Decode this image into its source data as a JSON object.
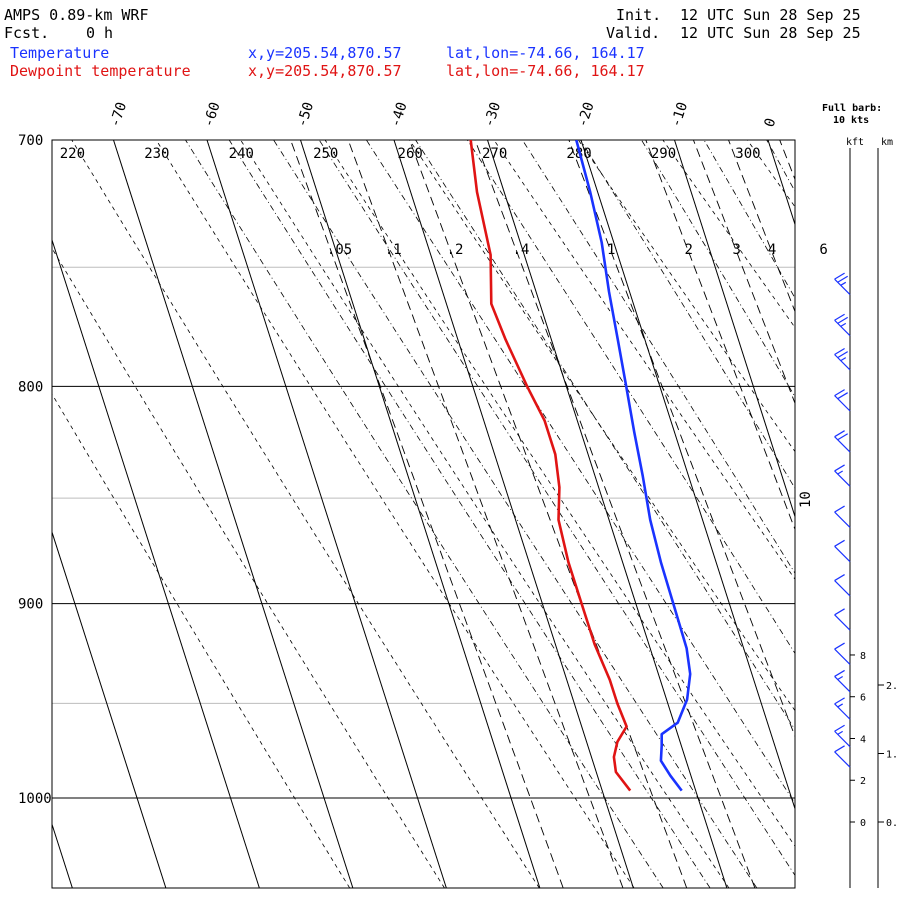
{
  "header": {
    "model": "AMPS 0.89-km WRF",
    "fcst_label": "Fcst.",
    "fcst_value": "0 h",
    "init_label": "Init.",
    "init_value": "12 UTC Sun 28 Sep 25",
    "valid_label": "Valid.",
    "valid_value": "12 UTC Sun 28 Sep 25"
  },
  "legend": [
    {
      "name": "Temperature",
      "xy": "x,y=205.54,870.57",
      "latlon": "lat,lon=-74.66, 164.17",
      "color": "#1a33ff"
    },
    {
      "name": "Dewpoint temperature",
      "xy": "x,y=205.54,870.57",
      "latlon": "lat,lon=-74.66, 164.17",
      "color": "#e01414"
    }
  ],
  "wind_legend": {
    "line1": "Full barb:",
    "line2": "10 kts"
  },
  "height_axis": {
    "kft_label": "kft",
    "km_label": "km"
  },
  "chart_data": {
    "type": "line",
    "diagram": "skew-T log-P",
    "y_axis": {
      "name": "pressure",
      "units": "hPa",
      "scale": "log",
      "range": [
        1045,
        700
      ],
      "ticks": [
        "700",
        "800",
        "900",
        "1000"
      ]
    },
    "x_axis": {
      "units": "degC",
      "skewed": true,
      "ticks": [
        "-70",
        "-60",
        "-50",
        "-40",
        "-30",
        "-20",
        "-10",
        "0",
        "10"
      ]
    },
    "dry_adiabats_K": [
      "220",
      "230",
      "240",
      "250",
      "260",
      "270",
      "280",
      "290",
      "300"
    ],
    "mixing_ratio_labels": [
      ".05",
      ".1",
      ".2",
      ".4",
      "1",
      "2",
      "3",
      "4",
      "6"
    ],
    "series": [
      {
        "name": "Temperature",
        "color": "#1a33ff",
        "points": [
          [
            996,
            -31.5
          ],
          [
            988,
            -32.2
          ],
          [
            980,
            -32.7
          ],
          [
            972,
            -32.1
          ],
          [
            966,
            -31.7
          ],
          [
            960,
            -29.6
          ],
          [
            948,
            -27.8
          ],
          [
            935,
            -26.6
          ],
          [
            922,
            -26.1
          ],
          [
            900,
            -26.0
          ],
          [
            880,
            -25.9
          ],
          [
            860,
            -25.6
          ],
          [
            840,
            -24.9
          ],
          [
            820,
            -24.3
          ],
          [
            800,
            -23.6
          ],
          [
            780,
            -22.9
          ],
          [
            760,
            -22.2
          ],
          [
            740,
            -21.3
          ],
          [
            720,
            -20.8
          ],
          [
            700,
            -20.5
          ]
        ]
      },
      {
        "name": "Dewpoint temperature",
        "color": "#e01414",
        "points": [
          [
            996,
            -37.0
          ],
          [
            986,
            -37.9
          ],
          [
            978,
            -37.6
          ],
          [
            970,
            -36.7
          ],
          [
            962,
            -35.2
          ],
          [
            950,
            -35.4
          ],
          [
            938,
            -35.4
          ],
          [
            920,
            -35.8
          ],
          [
            900,
            -35.8
          ],
          [
            880,
            -35.8
          ],
          [
            860,
            -35.4
          ],
          [
            845,
            -34.2
          ],
          [
            830,
            -33.5
          ],
          [
            815,
            -33.5
          ],
          [
            800,
            -34.2
          ],
          [
            780,
            -34.9
          ],
          [
            765,
            -35.2
          ],
          [
            745,
            -33.6
          ],
          [
            720,
            -32.9
          ],
          [
            700,
            -31.8
          ]
        ]
      }
    ],
    "wind_profile_kts": [
      {
        "km": 7.7,
        "speed": 25
      },
      {
        "km": 7.1,
        "speed": 25
      },
      {
        "km": 6.6,
        "speed": 25
      },
      {
        "km": 6.0,
        "speed": 20
      },
      {
        "km": 5.4,
        "speed": 20
      },
      {
        "km": 4.9,
        "speed": 15
      },
      {
        "km": 4.3,
        "speed": 10
      },
      {
        "km": 3.8,
        "speed": 10
      },
      {
        "km": 3.3,
        "speed": 10
      },
      {
        "km": 2.8,
        "speed": 10
      },
      {
        "km": 2.3,
        "speed": 10
      },
      {
        "km": 1.9,
        "speed": 15
      },
      {
        "km": 1.5,
        "speed": 15
      },
      {
        "km": 1.1,
        "speed": 15
      },
      {
        "km": 0.8,
        "speed": 10
      }
    ],
    "height_ticks_kft": [
      "0",
      "2",
      "4",
      "6",
      "8"
    ],
    "height_ticks_km": [
      "0.",
      "1.",
      "2."
    ]
  }
}
